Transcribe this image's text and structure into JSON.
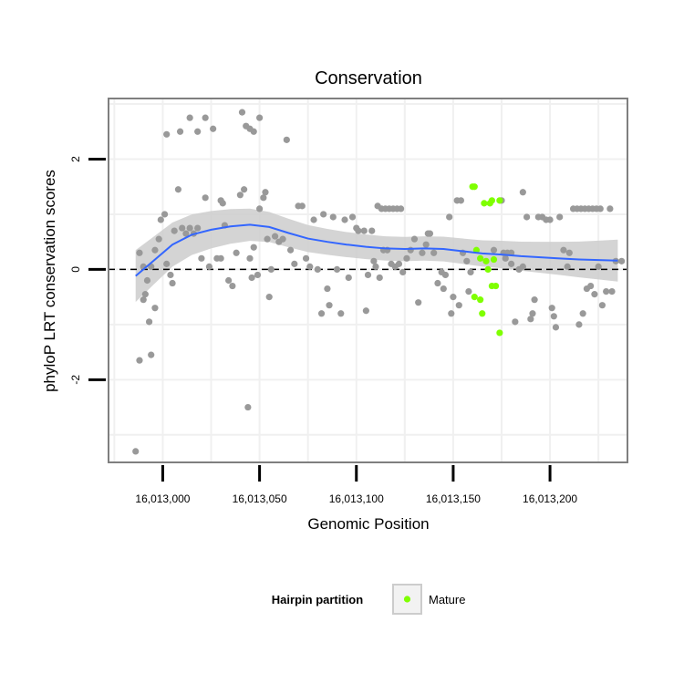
{
  "chart_data": {
    "type": "scatter",
    "title": "Conservation",
    "xlabel": "Genomic Position",
    "ylabel": "phyloP LRT conservation scores",
    "xlim": [
      12972,
      13240
    ],
    "ylim": [
      -3.5,
      3.1
    ],
    "x_ticks": [
      13000,
      13050,
      13100,
      13150,
      13200
    ],
    "x_tick_labels": [
      "16,013,000",
      "16,013,050",
      "16,013,100",
      "16,013,150",
      "16,013,200"
    ],
    "y_ticks": [
      -2,
      0,
      2
    ],
    "y_tick_labels": [
      "-2",
      "0",
      "2"
    ],
    "grid": true,
    "reference_line": {
      "y": 0,
      "style": "dashed"
    },
    "colors": {
      "other": "#999999",
      "mature": "#7FFF00",
      "smooth": "#3366FF",
      "ribbon": "#cccccc",
      "panel_border": "#7f7f7f",
      "grid": "#f0f0f0"
    },
    "legend": {
      "title": "Hairpin partition",
      "placement": "bottom",
      "entries": [
        "Mature"
      ]
    },
    "series": [
      {
        "name": "Mature",
        "points": [
          [
            13160,
            1.5
          ],
          [
            13161,
            1.5
          ],
          [
            13166,
            1.2
          ],
          [
            13169,
            1.2
          ],
          [
            13170,
            1.25
          ],
          [
            13174,
            1.25
          ],
          [
            13162,
            0.35
          ],
          [
            13164,
            0.2
          ],
          [
            13167,
            0.15
          ],
          [
            13171,
            0.18
          ],
          [
            13168,
            0.0
          ],
          [
            13161,
            -0.5
          ],
          [
            13164,
            -0.55
          ],
          [
            13170,
            -0.3
          ],
          [
            13172,
            -0.3
          ],
          [
            13165,
            -0.8
          ],
          [
            13174,
            -1.15
          ]
        ]
      },
      {
        "points": [
          [
            12986,
            -3.3
          ],
          [
            12988,
            -1.65
          ],
          [
            12994,
            -1.55
          ],
          [
            12990,
            -0.55
          ],
          [
            12991,
            -0.45
          ],
          [
            12992,
            -0.2
          ],
          [
            12993,
            -0.95
          ],
          [
            12996,
            -0.7
          ],
          [
            12988,
            0.3
          ],
          [
            12990,
            0.05
          ],
          [
            12994,
            0.05
          ],
          [
            12996,
            0.35
          ],
          [
            12998,
            0.55
          ],
          [
            12999,
            0.9
          ],
          [
            13001,
            1.0
          ],
          [
            13002,
            0.1
          ],
          [
            13004,
            -0.1
          ],
          [
            13005,
            -0.25
          ],
          [
            13006,
            0.7
          ],
          [
            13008,
            1.45
          ],
          [
            13010,
            0.75
          ],
          [
            13012,
            0.65
          ],
          [
            13014,
            0.75
          ],
          [
            13016,
            0.65
          ],
          [
            13018,
            0.75
          ],
          [
            13002,
            2.45
          ],
          [
            13009,
            2.5
          ],
          [
            13014,
            2.75
          ],
          [
            13018,
            2.5
          ],
          [
            13022,
            2.75
          ],
          [
            13026,
            2.55
          ],
          [
            13030,
            1.25
          ],
          [
            13031,
            1.2
          ],
          [
            13020,
            0.2
          ],
          [
            13022,
            1.3
          ],
          [
            13024,
            0.05
          ],
          [
            13028,
            0.2
          ],
          [
            13030,
            0.2
          ],
          [
            13032,
            0.8
          ],
          [
            13034,
            -0.2
          ],
          [
            13036,
            -0.3
          ],
          [
            13038,
            0.3
          ],
          [
            13040,
            1.35
          ],
          [
            13041,
            2.85
          ],
          [
            13043,
            2.6
          ],
          [
            13045,
            2.55
          ],
          [
            13047,
            2.5
          ],
          [
            13050,
            2.75
          ],
          [
            13042,
            1.45
          ],
          [
            13045,
            0.2
          ],
          [
            13046,
            -0.15
          ],
          [
            13047,
            0.4
          ],
          [
            13049,
            -0.1
          ],
          [
            13050,
            1.1
          ],
          [
            13052,
            1.3
          ],
          [
            13053,
            1.4
          ],
          [
            13054,
            0.55
          ],
          [
            13055,
            -0.5
          ],
          [
            13056,
            -0.0
          ],
          [
            13044,
            -2.5
          ],
          [
            13058,
            0.6
          ],
          [
            13060,
            0.5
          ],
          [
            13062,
            0.55
          ],
          [
            13064,
            2.35
          ],
          [
            13066,
            0.35
          ],
          [
            13068,
            0.1
          ],
          [
            13070,
            1.15
          ],
          [
            13072,
            1.15
          ],
          [
            13074,
            0.2
          ],
          [
            13076,
            0.05
          ],
          [
            13078,
            0.9
          ],
          [
            13080,
            0.0
          ],
          [
            13082,
            -0.8
          ],
          [
            13083,
            1.0
          ],
          [
            13085,
            -0.35
          ],
          [
            13086,
            -0.65
          ],
          [
            13088,
            0.95
          ],
          [
            13090,
            0.0
          ],
          [
            13092,
            -0.8
          ],
          [
            13094,
            0.9
          ],
          [
            13096,
            -0.15
          ],
          [
            13098,
            0.95
          ],
          [
            13100,
            0.75
          ],
          [
            13101,
            0.7
          ],
          [
            13104,
            0.7
          ],
          [
            13105,
            -0.75
          ],
          [
            13108,
            0.7
          ],
          [
            13110,
            0.05
          ],
          [
            13111,
            1.15
          ],
          [
            13113,
            1.1
          ],
          [
            13115,
            1.1
          ],
          [
            13117,
            1.1
          ],
          [
            13119,
            1.1
          ],
          [
            13121,
            1.1
          ],
          [
            13123,
            1.1
          ],
          [
            13106,
            -0.1
          ],
          [
            13109,
            0.15
          ],
          [
            13112,
            -0.15
          ],
          [
            13114,
            0.35
          ],
          [
            13116,
            0.35
          ],
          [
            13118,
            0.1
          ],
          [
            13120,
            0.05
          ],
          [
            13122,
            0.1
          ],
          [
            13124,
            -0.05
          ],
          [
            13126,
            0.2
          ],
          [
            13128,
            0.35
          ],
          [
            13130,
            0.55
          ],
          [
            13132,
            -0.6
          ],
          [
            13134,
            0.3
          ],
          [
            13136,
            0.45
          ],
          [
            13137,
            0.65
          ],
          [
            13138,
            0.65
          ],
          [
            13140,
            0.3
          ],
          [
            13142,
            -0.25
          ],
          [
            13144,
            -0.05
          ],
          [
            13145,
            -0.35
          ],
          [
            13146,
            -0.1
          ],
          [
            13148,
            0.95
          ],
          [
            13149,
            -0.8
          ],
          [
            13150,
            -0.5
          ],
          [
            13152,
            1.25
          ],
          [
            13153,
            -0.65
          ],
          [
            13154,
            1.25
          ],
          [
            13155,
            0.3
          ],
          [
            13157,
            0.15
          ],
          [
            13158,
            -0.4
          ],
          [
            13159,
            -0.05
          ],
          [
            13176,
            0.3
          ],
          [
            13178,
            0.3
          ],
          [
            13180,
            0.1
          ],
          [
            13182,
            -0.95
          ],
          [
            13184,
            0.0
          ],
          [
            13186,
            0.05
          ],
          [
            13188,
            0.95
          ],
          [
            13190,
            -0.9
          ],
          [
            13191,
            -0.8
          ],
          [
            13192,
            -0.55
          ],
          [
            13194,
            0.95
          ],
          [
            13196,
            0.95
          ],
          [
            13198,
            0.9
          ],
          [
            13200,
            0.9
          ],
          [
            13201,
            -0.7
          ],
          [
            13202,
            -0.85
          ],
          [
            13203,
            -1.05
          ],
          [
            13205,
            0.95
          ],
          [
            13207,
            0.35
          ],
          [
            13209,
            0.05
          ],
          [
            13210,
            0.3
          ],
          [
            13212,
            1.1
          ],
          [
            13214,
            1.1
          ],
          [
            13216,
            1.1
          ],
          [
            13218,
            1.1
          ],
          [
            13220,
            1.1
          ],
          [
            13222,
            1.1
          ],
          [
            13224,
            1.1
          ],
          [
            13226,
            1.1
          ],
          [
            13215,
            -1.0
          ],
          [
            13217,
            -0.8
          ],
          [
            13219,
            -0.35
          ],
          [
            13221,
            -0.3
          ],
          [
            13223,
            -0.45
          ],
          [
            13225,
            0.05
          ],
          [
            13227,
            -0.65
          ],
          [
            13229,
            -0.4
          ],
          [
            13231,
            1.1
          ],
          [
            13232,
            -0.4
          ],
          [
            13234,
            0.15
          ],
          [
            13237,
            0.15
          ],
          [
            13175,
            1.25
          ],
          [
            13180,
            0.3
          ],
          [
            13177,
            0.2
          ],
          [
            13186,
            1.4
          ],
          [
            13171,
            0.35
          ]
        ]
      },
      {
        "name": "smooth",
        "points": [
          [
            12986,
            -0.12
          ],
          [
            12995,
            0.15
          ],
          [
            13005,
            0.45
          ],
          [
            13015,
            0.63
          ],
          [
            13025,
            0.72
          ],
          [
            13035,
            0.78
          ],
          [
            13045,
            0.81
          ],
          [
            13055,
            0.77
          ],
          [
            13065,
            0.66
          ],
          [
            13075,
            0.56
          ],
          [
            13085,
            0.5
          ],
          [
            13095,
            0.45
          ],
          [
            13105,
            0.41
          ],
          [
            13115,
            0.38
          ],
          [
            13125,
            0.37
          ],
          [
            13135,
            0.38
          ],
          [
            13145,
            0.37
          ],
          [
            13155,
            0.33
          ],
          [
            13165,
            0.29
          ],
          [
            13175,
            0.27
          ],
          [
            13185,
            0.24
          ],
          [
            13195,
            0.22
          ],
          [
            13205,
            0.2
          ],
          [
            13215,
            0.18
          ],
          [
            13225,
            0.17
          ],
          [
            13235,
            0.16
          ]
        ]
      }
    ]
  }
}
